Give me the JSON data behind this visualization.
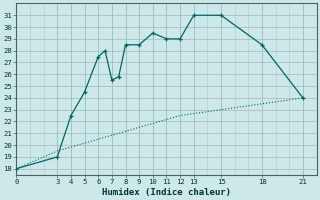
{
  "xlabel": "Humidex (Indice chaleur)",
  "xlim": [
    0,
    22
  ],
  "ylim": [
    17.5,
    32
  ],
  "xticks": [
    0,
    3,
    4,
    5,
    6,
    7,
    8,
    9,
    10,
    11,
    12,
    13,
    15,
    18,
    21
  ],
  "yticks": [
    18,
    19,
    20,
    21,
    22,
    23,
    24,
    25,
    26,
    27,
    28,
    29,
    30,
    31
  ],
  "bg_color": "#cce8e8",
  "line_color": "#006666",
  "line1_x": [
    0,
    3,
    4,
    5,
    6,
    6.5,
    7,
    7.5,
    8,
    9,
    10,
    11,
    12,
    13,
    15,
    18,
    21
  ],
  "line1_y": [
    18,
    19,
    22.5,
    24.5,
    27.5,
    28,
    25.5,
    25.8,
    28.5,
    28.5,
    29.5,
    29,
    29,
    31,
    31,
    28.5,
    24
  ],
  "line2_x": [
    0,
    3,
    6,
    9,
    12,
    15,
    18,
    21
  ],
  "line2_y": [
    18,
    19.5,
    20.5,
    21.5,
    22.5,
    23,
    23.5,
    24
  ],
  "marker": "+"
}
